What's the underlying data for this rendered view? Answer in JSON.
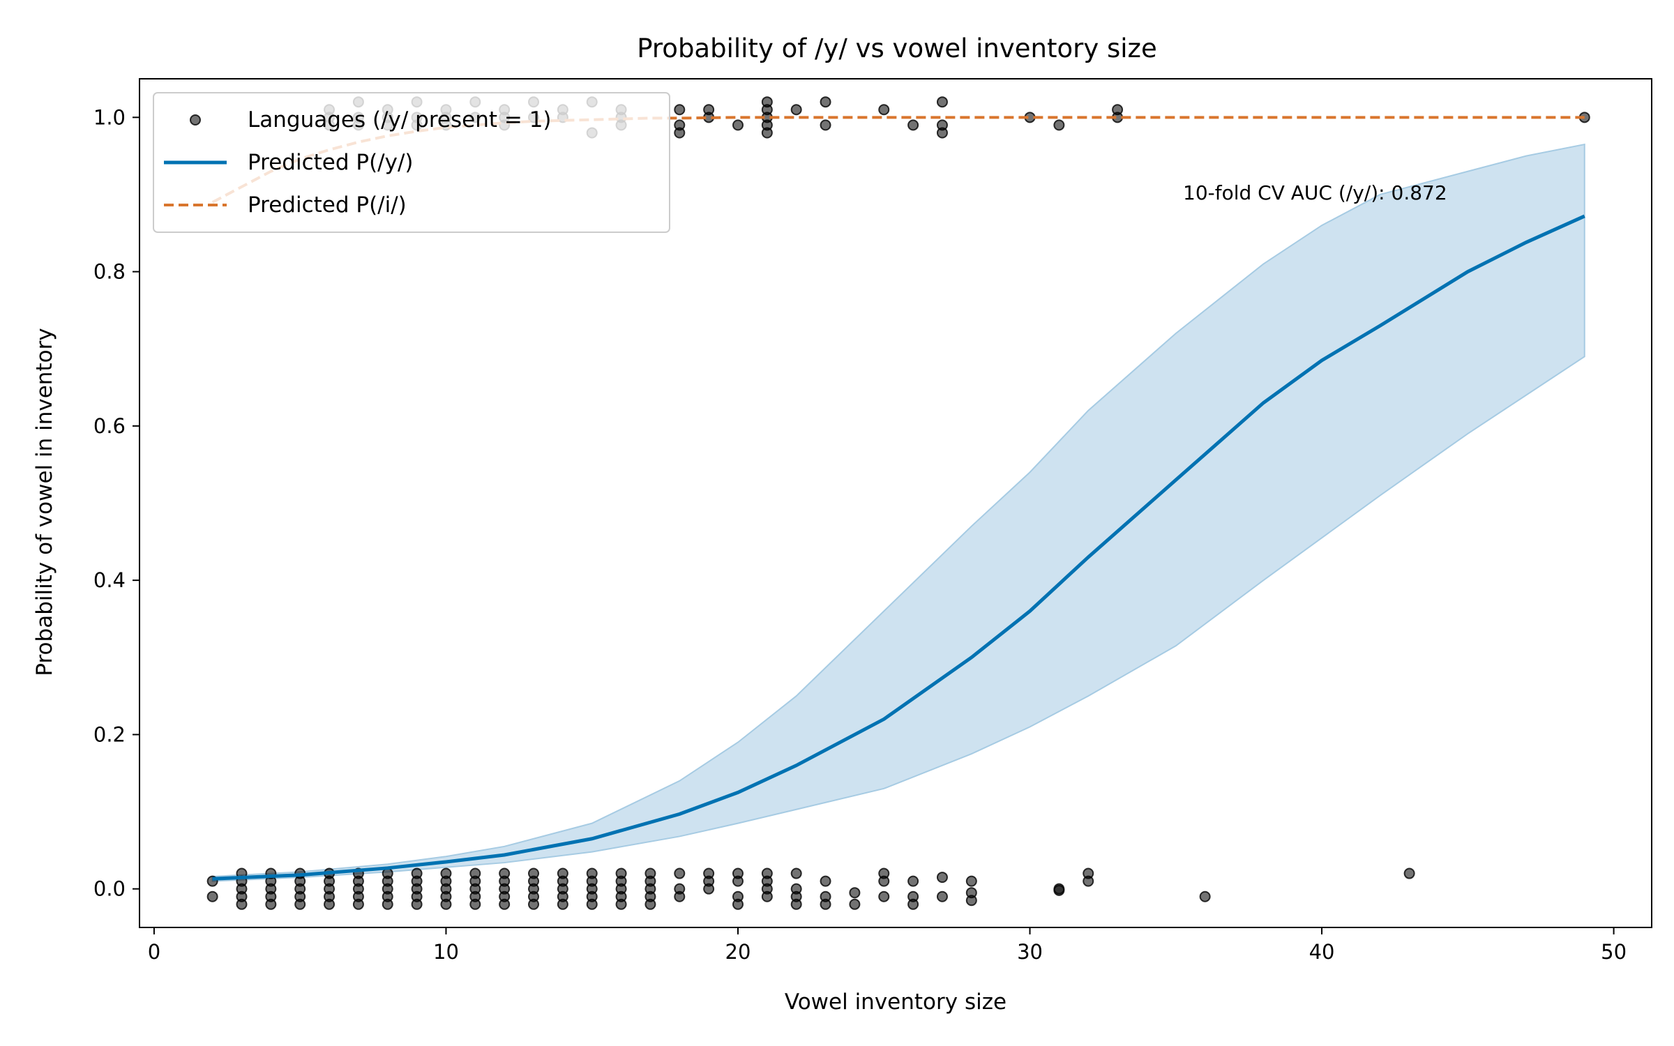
{
  "chart_data": {
    "type": "scatter",
    "title": "Probability of /y/ vs vowel inventory size",
    "xlabel": "Vowel inventory size",
    "ylabel": "Probability of vowel in inventory",
    "xlim": [
      -0.5,
      51.3
    ],
    "ylim": [
      -0.05,
      1.05
    ],
    "x_ticks": [
      0,
      10,
      20,
      30,
      40,
      50
    ],
    "y_ticks": [
      0.0,
      0.2,
      0.4,
      0.6,
      0.8,
      1.0
    ],
    "x_tick_labels": [
      "0",
      "10",
      "20",
      "30",
      "40",
      "50"
    ],
    "y_tick_labels": [
      "0.0",
      "0.2",
      "0.4",
      "0.6",
      "0.8",
      "1.0"
    ],
    "grid": false,
    "legend_position": "upper-left",
    "legend": [
      {
        "label": "Languages (/y/ present = 1)",
        "kind": "marker"
      },
      {
        "label": "Predicted P(/y/)",
        "kind": "solid-line"
      },
      {
        "label": "Predicted P(/i/)",
        "kind": "dashed-line"
      }
    ],
    "annotation": "10-fold CV AUC (/y/): 0.872",
    "colors": {
      "points": "#000000",
      "pred_y": "#0072b2",
      "pred_y_band": "#a6cbe3",
      "pred_i": "#d9762e"
    },
    "series": [
      {
        "name": "Languages (/y/ present = 1)",
        "type": "scatter",
        "points_present": [
          [
            6,
            1.01
          ],
          [
            6,
            1.0
          ],
          [
            6,
            0.99
          ],
          [
            7,
            1.02
          ],
          [
            7,
            1.0
          ],
          [
            7,
            0.99
          ],
          [
            8,
            1.01
          ],
          [
            8,
            1.0
          ],
          [
            8,
            0.99
          ],
          [
            9,
            1.02
          ],
          [
            9,
            1.0
          ],
          [
            9,
            0.99
          ],
          [
            10,
            1.01
          ],
          [
            10,
            1.0
          ],
          [
            10,
            0.99
          ],
          [
            11,
            1.02
          ],
          [
            11,
            1.0
          ],
          [
            12,
            1.01
          ],
          [
            12,
            1.0
          ],
          [
            12,
            0.99
          ],
          [
            13,
            1.02
          ],
          [
            13,
            1.0
          ],
          [
            14,
            1.01
          ],
          [
            14,
            1.0
          ],
          [
            15,
            1.02
          ],
          [
            15,
            0.98
          ],
          [
            16,
            1.01
          ],
          [
            16,
            1.0
          ],
          [
            16,
            0.99
          ],
          [
            18,
            1.01
          ],
          [
            18,
            0.99
          ],
          [
            18,
            0.98
          ],
          [
            19,
            1.01
          ],
          [
            19,
            1.0
          ],
          [
            20,
            0.99
          ],
          [
            21,
            1.02
          ],
          [
            21,
            1.01
          ],
          [
            21,
            1.0
          ],
          [
            21,
            0.99
          ],
          [
            21,
            0.98
          ],
          [
            22,
            1.01
          ],
          [
            23,
            1.02
          ],
          [
            23,
            0.99
          ],
          [
            25,
            1.01
          ],
          [
            26,
            0.99
          ],
          [
            27,
            1.02
          ],
          [
            27,
            0.99
          ],
          [
            27,
            0.98
          ],
          [
            30,
            1.0
          ],
          [
            31,
            0.99
          ],
          [
            33,
            1.01
          ],
          [
            33,
            1.0
          ],
          [
            49,
            1.0
          ]
        ],
        "points_absent": [
          [
            2,
            0.01
          ],
          [
            2,
            -0.01
          ],
          [
            3,
            0.02
          ],
          [
            3,
            0.01
          ],
          [
            3,
            0.0
          ],
          [
            3,
            -0.01
          ],
          [
            3,
            -0.02
          ],
          [
            4,
            0.02
          ],
          [
            4,
            0.01
          ],
          [
            4,
            0.0
          ],
          [
            4,
            -0.01
          ],
          [
            4,
            -0.02
          ],
          [
            5,
            0.02
          ],
          [
            5,
            0.01
          ],
          [
            5,
            0.0
          ],
          [
            5,
            -0.01
          ],
          [
            5,
            -0.02
          ],
          [
            6,
            0.02
          ],
          [
            6,
            0.01
          ],
          [
            6,
            0.0
          ],
          [
            6,
            -0.01
          ],
          [
            6,
            -0.02
          ],
          [
            7,
            0.02
          ],
          [
            7,
            0.01
          ],
          [
            7,
            0.0
          ],
          [
            7,
            -0.01
          ],
          [
            7,
            -0.02
          ],
          [
            8,
            0.02
          ],
          [
            8,
            0.01
          ],
          [
            8,
            0.0
          ],
          [
            8,
            -0.01
          ],
          [
            8,
            -0.02
          ],
          [
            9,
            0.02
          ],
          [
            9,
            0.01
          ],
          [
            9,
            0.0
          ],
          [
            9,
            -0.01
          ],
          [
            9,
            -0.02
          ],
          [
            10,
            0.02
          ],
          [
            10,
            0.01
          ],
          [
            10,
            0.0
          ],
          [
            10,
            -0.01
          ],
          [
            10,
            -0.02
          ],
          [
            11,
            0.02
          ],
          [
            11,
            0.01
          ],
          [
            11,
            0.0
          ],
          [
            11,
            -0.01
          ],
          [
            11,
            -0.02
          ],
          [
            12,
            0.02
          ],
          [
            12,
            0.01
          ],
          [
            12,
            0.0
          ],
          [
            12,
            -0.01
          ],
          [
            12,
            -0.02
          ],
          [
            13,
            0.02
          ],
          [
            13,
            0.01
          ],
          [
            13,
            0.0
          ],
          [
            13,
            -0.01
          ],
          [
            13,
            -0.02
          ],
          [
            14,
            0.02
          ],
          [
            14,
            0.01
          ],
          [
            14,
            0.0
          ],
          [
            14,
            -0.01
          ],
          [
            14,
            -0.02
          ],
          [
            15,
            0.02
          ],
          [
            15,
            0.01
          ],
          [
            15,
            0.0
          ],
          [
            15,
            -0.01
          ],
          [
            15,
            -0.02
          ],
          [
            16,
            0.02
          ],
          [
            16,
            0.01
          ],
          [
            16,
            0.0
          ],
          [
            16,
            -0.01
          ],
          [
            16,
            -0.02
          ],
          [
            17,
            0.02
          ],
          [
            17,
            0.01
          ],
          [
            17,
            0.0
          ],
          [
            17,
            -0.01
          ],
          [
            17,
            -0.02
          ],
          [
            18,
            0.02
          ],
          [
            18,
            0.0
          ],
          [
            18,
            -0.01
          ],
          [
            19,
            0.02
          ],
          [
            19,
            0.01
          ],
          [
            19,
            0.0
          ],
          [
            20,
            0.02
          ],
          [
            20,
            0.01
          ],
          [
            20,
            -0.01
          ],
          [
            20,
            -0.02
          ],
          [
            21,
            0.02
          ],
          [
            21,
            0.01
          ],
          [
            21,
            0.0
          ],
          [
            21,
            -0.01
          ],
          [
            22,
            0.02
          ],
          [
            22,
            0.0
          ],
          [
            22,
            -0.01
          ],
          [
            22,
            -0.02
          ],
          [
            23,
            0.01
          ],
          [
            23,
            -0.01
          ],
          [
            23,
            -0.02
          ],
          [
            24,
            -0.005
          ],
          [
            24,
            -0.02
          ],
          [
            25,
            0.02
          ],
          [
            25,
            0.01
          ],
          [
            25,
            -0.01
          ],
          [
            26,
            0.01
          ],
          [
            26,
            -0.01
          ],
          [
            26,
            -0.02
          ],
          [
            27,
            0.015
          ],
          [
            27,
            -0.01
          ],
          [
            28,
            0.01
          ],
          [
            28,
            -0.005
          ],
          [
            28,
            -0.015
          ],
          [
            31,
            0.0
          ],
          [
            31,
            -0.002
          ],
          [
            32,
            0.02
          ],
          [
            32,
            0.01
          ],
          [
            36,
            -0.01
          ],
          [
            43,
            0.02
          ]
        ]
      },
      {
        "name": "Predicted P(/y/)",
        "type": "line",
        "x": [
          2,
          5,
          8,
          10,
          12,
          15,
          18,
          20,
          22,
          25,
          28,
          30,
          32,
          35,
          38,
          40,
          42,
          45,
          47,
          49
        ],
        "values": [
          0.013,
          0.018,
          0.027,
          0.035,
          0.044,
          0.065,
          0.097,
          0.125,
          0.16,
          0.22,
          0.3,
          0.36,
          0.43,
          0.53,
          0.63,
          0.685,
          0.73,
          0.8,
          0.838,
          0.872
        ],
        "band_lower": [
          0.01,
          0.015,
          0.022,
          0.028,
          0.034,
          0.048,
          0.068,
          0.085,
          0.103,
          0.13,
          0.175,
          0.21,
          0.25,
          0.315,
          0.4,
          0.455,
          0.51,
          0.59,
          0.64,
          0.69
        ],
        "band_upper": [
          0.016,
          0.022,
          0.032,
          0.042,
          0.055,
          0.085,
          0.14,
          0.19,
          0.25,
          0.36,
          0.47,
          0.54,
          0.62,
          0.72,
          0.81,
          0.86,
          0.9,
          0.93,
          0.95,
          0.965
        ]
      },
      {
        "name": "Predicted P(/i/)",
        "type": "line",
        "x": [
          2,
          3,
          4,
          5,
          6,
          7,
          8,
          9,
          10,
          11,
          12,
          13,
          14,
          15,
          16,
          17,
          18,
          20,
          25,
          30,
          35,
          40,
          45,
          49
        ],
        "values": [
          0.89,
          0.91,
          0.93,
          0.946,
          0.958,
          0.968,
          0.976,
          0.982,
          0.987,
          0.99,
          0.993,
          0.995,
          0.996,
          0.997,
          0.998,
          0.999,
          0.999,
          1.0,
          1.0,
          1.0,
          1.0,
          1.0,
          1.0,
          1.0
        ]
      }
    ]
  }
}
